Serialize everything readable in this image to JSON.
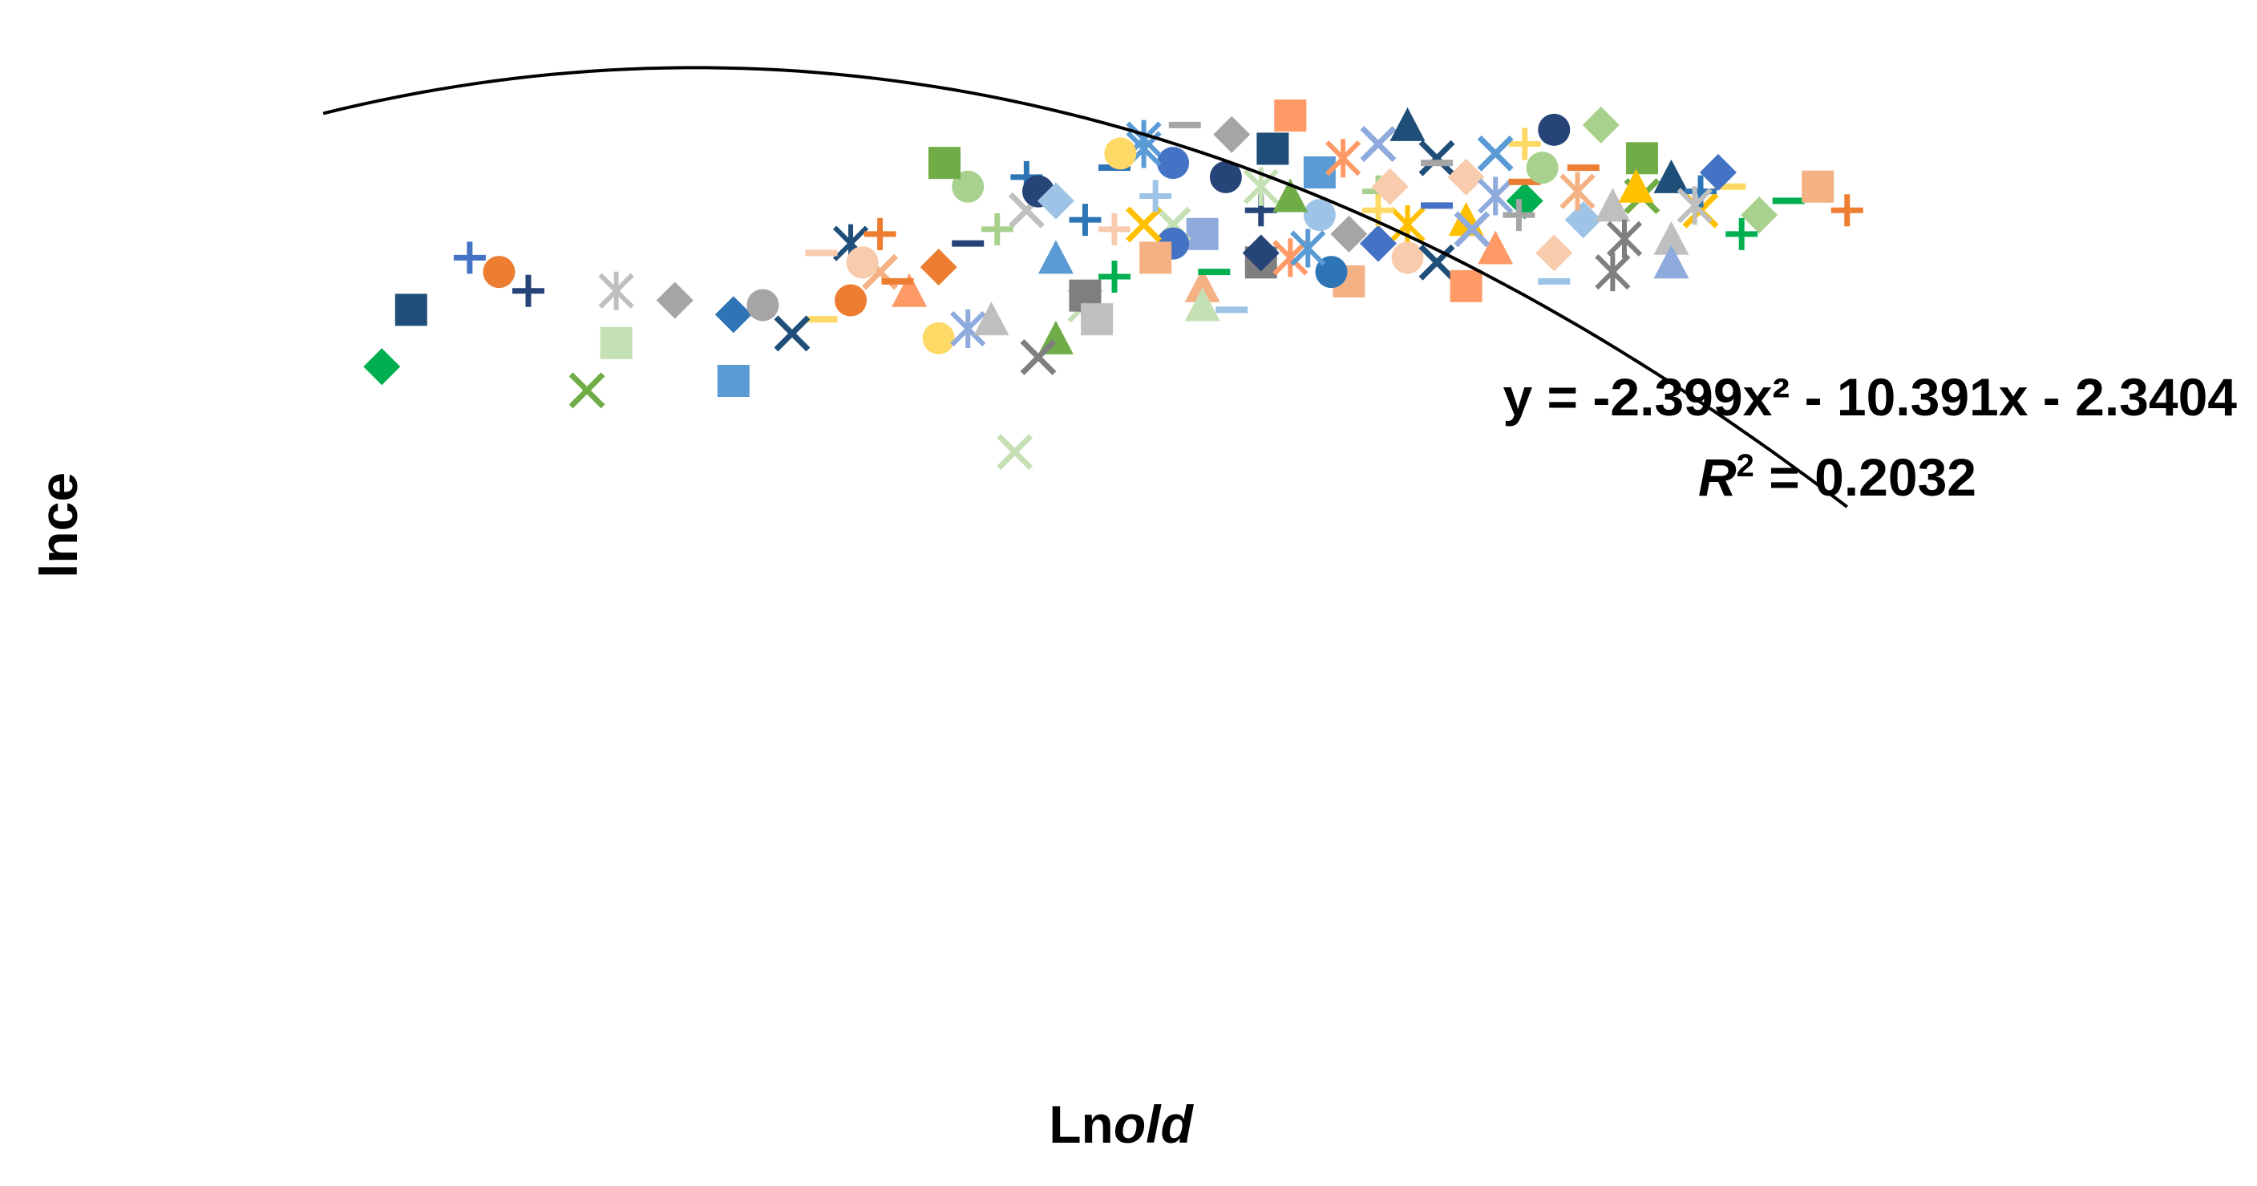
{
  "chart_data": {
    "type": "scatter",
    "title": "",
    "xlabel_prefix": "Ln",
    "xlabel_italic": "old",
    "ylabel": "lnce",
    "grid": false,
    "legend": "none",
    "xlim": [
      -2.9,
      0.0
    ],
    "ylim": [
      -12.0,
      10.0
    ],
    "trendline": {
      "type": "polynomial",
      "order": 2,
      "coefficients": [
        -2.399,
        -10.391,
        -2.3404
      ],
      "x_range": [
        -2.8,
        -0.2
      ],
      "equation_label": "y = -2.399x² - 10.391x - 2.3404",
      "r2_prefix": "R",
      "r2_sup": "2",
      "r2_value": " = 0.2032"
    },
    "palette": [
      "#1f4e79",
      "#2e75b6",
      "#5b9bd5",
      "#9dc3e6",
      "#70ad47",
      "#a9d18e",
      "#c5e0b4",
      "#ed7d31",
      "#f4b183",
      "#f8cbad",
      "#ffc000",
      "#ffd966",
      "#7f7f7f",
      "#a5a5a5",
      "#bfbfbf",
      "#264478",
      "#8faadc",
      "#00b050",
      "#ff9966",
      "#4472c4"
    ],
    "marker_shapes": [
      "square",
      "diamond",
      "triangle",
      "circle",
      "x",
      "plus",
      "star",
      "dash"
    ],
    "series": [
      {
        "name": "",
        "points": [
          [
            -2.65,
            3.8
          ],
          [
            -2.5,
            4.6
          ],
          [
            -2.3,
            4.2
          ],
          [
            -2.1,
            3.7
          ],
          [
            -1.85,
            4.6
          ],
          [
            -1.7,
            5.2
          ],
          [
            -1.55,
            4.9
          ],
          [
            -1.45,
            5.5
          ],
          [
            -1.3,
            5.4
          ],
          [
            -1.1,
            5.8
          ],
          [
            -0.95,
            5.6
          ],
          [
            -0.75,
            6.1
          ],
          [
            -0.55,
            6.2
          ],
          [
            -0.4,
            6.4
          ],
          [
            -0.8,
            5.1
          ],
          [
            -1.0,
            6.3
          ],
          [
            -1.2,
            4.8
          ],
          [
            -1.35,
            6.9
          ],
          [
            -1.5,
            3.9
          ],
          [
            -1.25,
            7.5
          ],
          [
            -0.9,
            7.0
          ],
          [
            -0.65,
            6.8
          ],
          [
            -0.5,
            5.3
          ],
          [
            -1.6,
            6.6
          ],
          [
            -1.05,
            4.4
          ],
          [
            -0.7,
            7.6
          ],
          [
            -1.4,
            7.2
          ],
          [
            -0.85,
            6.6
          ]
        ]
      },
      {
        "name": "",
        "points": [
          [
            -2.55,
            4.9
          ],
          [
            -2.3,
            3.1
          ],
          [
            -2.05,
            3.9
          ],
          [
            -1.9,
            5.2
          ],
          [
            -1.75,
            4.7
          ],
          [
            -1.6,
            5.9
          ],
          [
            -1.45,
            6.8
          ],
          [
            -1.3,
            4.3
          ],
          [
            -1.2,
            5.9
          ],
          [
            -1.1,
            6.7
          ],
          [
            -0.95,
            4.9
          ],
          [
            -0.8,
            6.2
          ],
          [
            -0.65,
            5.7
          ],
          [
            -0.45,
            5.9
          ],
          [
            -0.3,
            6.1
          ],
          [
            -1.55,
            3.2
          ],
          [
            -0.75,
            7.3
          ],
          [
            -1.15,
            7.9
          ],
          [
            -1.7,
            6.4
          ],
          [
            -0.6,
            4.6
          ],
          [
            -1.0,
            5.2
          ],
          [
            -1.35,
            5.6
          ],
          [
            -0.9,
            6.9
          ],
          [
            -0.5,
            6.6
          ],
          [
            -1.85,
            5.4
          ]
        ]
      },
      {
        "name": "",
        "points": [
          [
            -2.7,
            2.6
          ],
          [
            -2.35,
            2.1
          ],
          [
            -1.95,
            3.6
          ],
          [
            -1.8,
            4.2
          ],
          [
            -1.65,
            5.5
          ],
          [
            -1.5,
            4.1
          ],
          [
            -1.35,
            5.2
          ],
          [
            -1.2,
            6.4
          ],
          [
            -1.05,
            5.4
          ],
          [
            -0.9,
            4.8
          ],
          [
            -0.75,
            6.5
          ],
          [
            -0.6,
            6.0
          ],
          [
            -0.45,
            6.3
          ],
          [
            -0.25,
            6.4
          ],
          [
            -1.58,
            6.3
          ],
          [
            -1.4,
            7.4
          ],
          [
            -0.7,
            5.0
          ],
          [
            -1.0,
            7.3
          ],
          [
            -1.25,
            3.8
          ],
          [
            -0.85,
            5.7
          ],
          [
            -1.45,
            4.5
          ],
          [
            -0.55,
            7.0
          ],
          [
            -1.75,
            3.2
          ],
          [
            -1.15,
            4.9
          ],
          [
            -0.35,
            5.8
          ]
        ]
      },
      {
        "name": "",
        "points": [
          [
            -2.45,
            4.2
          ],
          [
            -2.1,
            2.3
          ],
          [
            -1.88,
            4.8
          ],
          [
            -1.7,
            3.4
          ],
          [
            -1.55,
            6.1
          ],
          [
            -1.4,
            5.6
          ],
          [
            -1.28,
            4.6
          ],
          [
            -1.15,
            6.2
          ],
          [
            -1.0,
            5.9
          ],
          [
            -0.85,
            4.3
          ],
          [
            -0.72,
            6.8
          ],
          [
            -0.58,
            5.3
          ],
          [
            -0.42,
            6.7
          ],
          [
            -1.62,
            0.8
          ],
          [
            -1.33,
            7.7
          ],
          [
            -0.95,
            7.7
          ],
          [
            -0.2,
            5.9
          ],
          [
            -1.48,
            3.6
          ],
          [
            -1.08,
            4.6
          ],
          [
            -0.66,
            6.3
          ],
          [
            -1.2,
            5.0
          ],
          [
            -0.8,
            7.1
          ],
          [
            -1.95,
            5.0
          ],
          [
            -0.5,
            4.8
          ],
          [
            -1.38,
            6.2
          ]
        ]
      },
      {
        "name": "",
        "points": [
          [
            -2.2,
            4.0
          ],
          [
            -2.0,
            3.3
          ],
          [
            -1.82,
            4.4
          ],
          [
            -1.66,
            3.6
          ],
          [
            -1.5,
            5.7
          ],
          [
            -1.38,
            4.9
          ],
          [
            -1.26,
            6.6
          ],
          [
            -1.12,
            5.1
          ],
          [
            -0.98,
            6.4
          ],
          [
            -0.84,
            5.5
          ],
          [
            -0.7,
            4.4
          ],
          [
            -0.56,
            6.4
          ],
          [
            -0.38,
            5.4
          ],
          [
            -1.74,
            6.9
          ],
          [
            -1.44,
            7.1
          ],
          [
            -1.06,
            7.0
          ],
          [
            -0.62,
            7.7
          ],
          [
            -1.58,
            2.8
          ],
          [
            -0.9,
            6.0
          ],
          [
            -1.3,
            3.9
          ],
          [
            -0.76,
            5.8
          ],
          [
            -1.18,
            7.2
          ],
          [
            -1.9,
            4.0
          ],
          [
            -0.46,
            6.0
          ]
        ]
      }
    ]
  }
}
